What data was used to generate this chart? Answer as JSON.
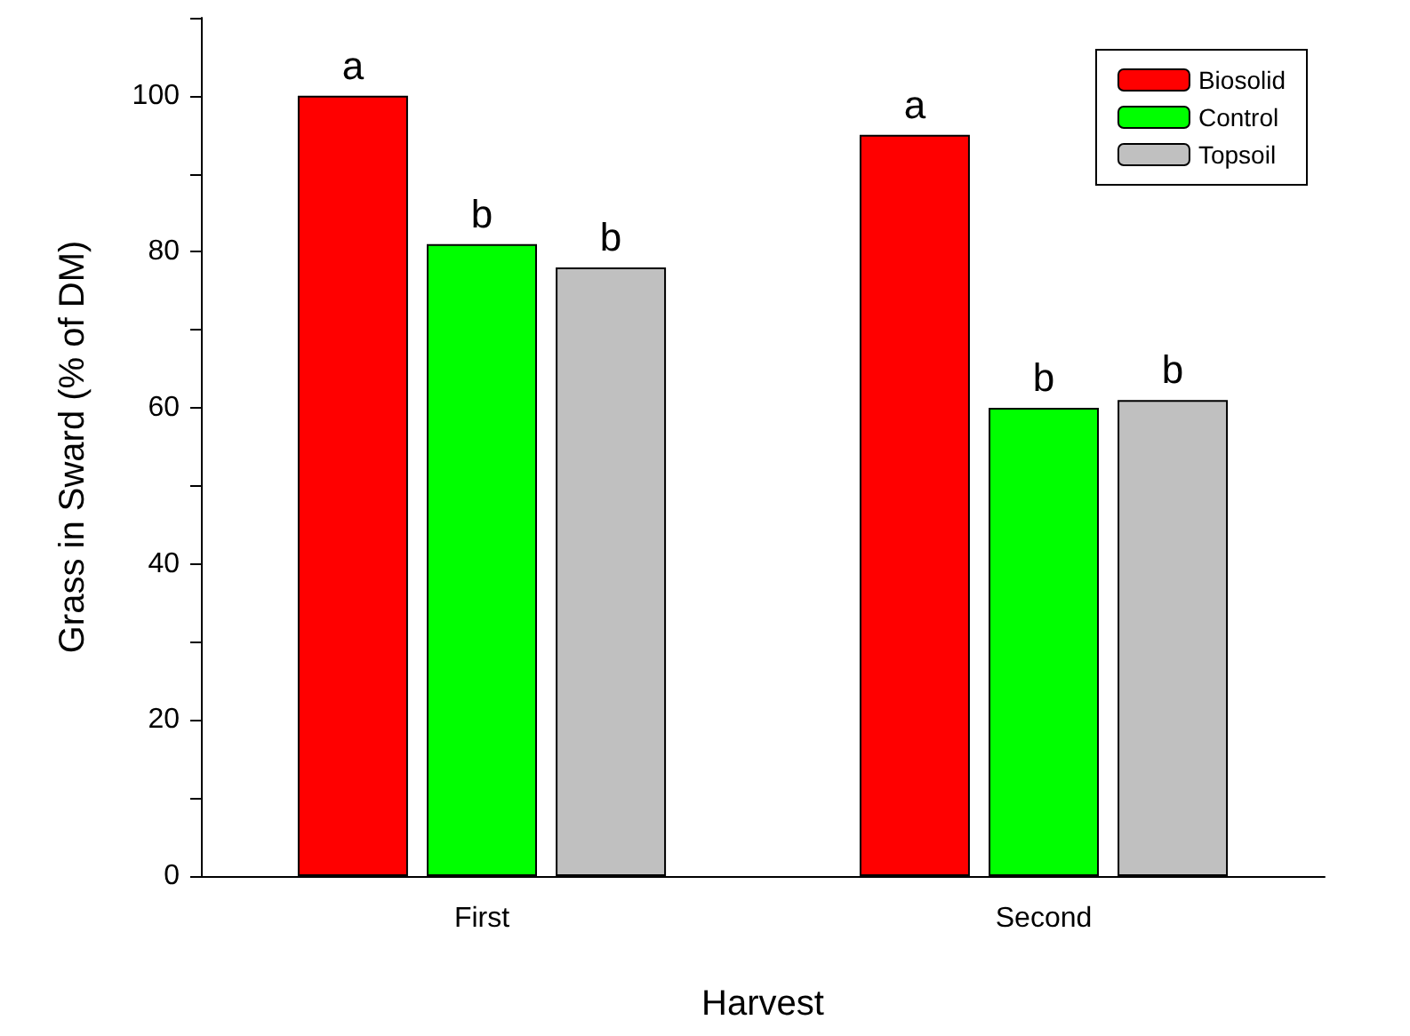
{
  "chart_data": {
    "type": "bar",
    "xlabel": "Harvest",
    "ylabel": "Grass in Sward (% of DM)",
    "categories": [
      "First",
      "Second"
    ],
    "series": [
      {
        "name": "Biosolid",
        "color": "#ff0000",
        "values": [
          100,
          95
        ],
        "value_labels": [
          "a",
          "a"
        ]
      },
      {
        "name": "Control",
        "color": "#00ff00",
        "values": [
          81,
          60
        ],
        "value_labels": [
          "b",
          "b"
        ]
      },
      {
        "name": "Topsoil",
        "color": "#c0c0c0",
        "values": [
          78,
          61
        ],
        "value_labels": [
          "b",
          "b"
        ]
      }
    ],
    "ylim": [
      0,
      110
    ],
    "yticks": [
      0,
      {
        "value": 10,
        "label": null
      },
      20,
      {
        "value": 30,
        "label": null
      },
      40,
      {
        "value": 50,
        "label": null
      },
      60,
      {
        "value": 70,
        "label": null
      },
      80,
      {
        "value": 90,
        "label": null
      },
      100,
      {
        "value": 110,
        "label": null
      }
    ],
    "grid": false,
    "legend": "top right"
  }
}
